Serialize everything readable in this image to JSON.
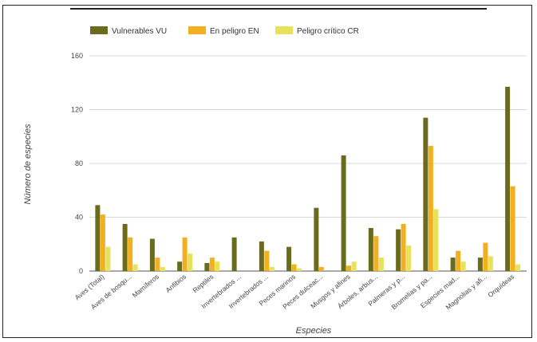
{
  "chart_data": {
    "type": "bar",
    "xlabel": "Especies",
    "ylabel": "Número de especies",
    "ylim": [
      0,
      160
    ],
    "yticks": [
      0,
      40,
      80,
      120,
      160
    ],
    "grid": true,
    "legend_position": "top-left",
    "categories": [
      "Aves (Total)",
      "Aves de bosqu...",
      "Mamíferos",
      "Anfibios",
      "Reptiles",
      "Invertebrados ...",
      "Invertebrados ...",
      "Peces marinos",
      "Peces dulceac...",
      "Musgos y afines",
      "Árboles, arbus...",
      "Palmeras y p...",
      "Bromelias y pa...",
      "Especies mad...",
      "Magnolias y afi...",
      "Orquídeas"
    ],
    "series": [
      {
        "name": "Vulnerables VU",
        "color": "#6b6b1e",
        "values": [
          49,
          35,
          24,
          7,
          6,
          25,
          22,
          18,
          47,
          86,
          32,
          31,
          114,
          10,
          10,
          137
        ]
      },
      {
        "name": "En peligro EN",
        "color": "#f2b01e",
        "values": [
          42,
          25,
          10,
          25,
          10,
          0,
          15,
          5,
          3,
          4,
          26,
          35,
          93,
          15,
          21,
          63
        ]
      },
      {
        "name": "Peligro crítico CR",
        "color": "#e8e25a",
        "values": [
          18,
          5,
          3,
          13,
          7,
          0,
          3,
          2,
          0,
          7,
          10,
          19,
          46,
          7,
          11,
          5
        ]
      }
    ]
  }
}
